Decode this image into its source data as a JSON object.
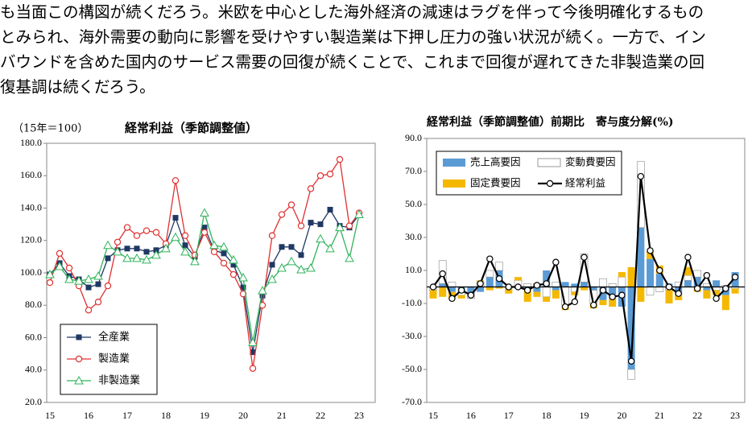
{
  "text_lines": [
    "も当面この構図が続くだろう。米欧を中心とした海外経済の減速はラグを伴って今後明確化するもの",
    "とみられ、海外需要の動向に影響を受けやすい製造業は下押し圧力の強い状況が続く。一方で、イン",
    "バウンドを含めた国内のサービス需要の回復が続くことで、これまで回復が遅れてきた非製造業の回",
    "復基調は続くだろう。"
  ],
  "chart_data": [
    {
      "type": "line",
      "title": "経常利益（季節調整値）",
      "unit_label": "（15年＝100）",
      "categories": [
        "15",
        null,
        null,
        null,
        "16",
        null,
        null,
        null,
        "17",
        null,
        null,
        null,
        "18",
        null,
        null,
        null,
        "19",
        null,
        null,
        null,
        "20",
        null,
        null,
        null,
        "21",
        null,
        null,
        null,
        "22",
        null,
        null,
        null,
        "23"
      ],
      "series": [
        {
          "name": "全産業",
          "color": "#1f3864",
          "marker": "square",
          "values": [
            99,
            106,
            98,
            96,
            91,
            93,
            109,
            114,
            115,
            115,
            113,
            114,
            117,
            134,
            117,
            110,
            128,
            114,
            112,
            105,
            91,
            51,
            86,
            105,
            116,
            116,
            111,
            131,
            130,
            139,
            129,
            128,
            136
          ]
        },
        {
          "name": "製造業",
          "color": "#e03030",
          "marker": "circle",
          "values": [
            94,
            112,
            103,
            92,
            77,
            82,
            92,
            119,
            128,
            123,
            126,
            125,
            118,
            157,
            123,
            111,
            125,
            113,
            106,
            99,
            87,
            41,
            80,
            123,
            136,
            142,
            129,
            152,
            160,
            161,
            170,
            129,
            137
          ]
        },
        {
          "name": "非製造業",
          "color": "#2fb35a",
          "marker": "triangle",
          "values": [
            99,
            104,
            96,
            95,
            96,
            98,
            117,
            113,
            109,
            109,
            108,
            111,
            115,
            122,
            113,
            107,
            137,
            117,
            116,
            108,
            97,
            57,
            89,
            96,
            103,
            107,
            102,
            103,
            121,
            115,
            128,
            109,
            136
          ]
        }
      ],
      "ylim": [
        20,
        180
      ],
      "yticks": [
        {
          "value": 20,
          "label": "20.0"
        },
        {
          "value": 40,
          "label": "40.0"
        },
        {
          "value": 60,
          "label": "60.0"
        },
        {
          "value": 80,
          "label": "80.0"
        },
        {
          "value": 100,
          "label": "100.0"
        },
        {
          "value": 120,
          "label": "120.0"
        },
        {
          "value": 140,
          "label": "140.0"
        },
        {
          "value": 160,
          "label": "160.0"
        },
        {
          "value": 180,
          "label": "180.0"
        }
      ],
      "grid": false,
      "legend": "lower left"
    },
    {
      "type": "combo",
      "title": "経常利益（季節調整値）前期比　寄与度分解(%)",
      "categories": [
        "15",
        null,
        null,
        null,
        "16",
        null,
        null,
        null,
        "17",
        null,
        null,
        null,
        "18",
        null,
        null,
        null,
        "19",
        null,
        null,
        null,
        "20",
        null,
        null,
        null,
        "21",
        null,
        null,
        null,
        "22",
        null,
        null,
        null,
        "23"
      ],
      "series": [
        {
          "name": "売上高要因",
          "color": "#5b9bd5",
          "kind": "bar",
          "values": [
            0,
            2,
            -3,
            -3,
            -4,
            -3,
            6,
            10,
            -1,
            -1,
            -1,
            -3,
            10,
            -2,
            3,
            2,
            3,
            -2,
            -8,
            -7,
            -12,
            -50,
            36,
            17,
            8,
            2,
            -5,
            4,
            6,
            -2,
            4,
            -5,
            9
          ]
        },
        {
          "name": "変動費要因",
          "color": "#ffffff",
          "kind": "bar",
          "values": [
            -2,
            14,
            3,
            -2,
            -3,
            3,
            4,
            5,
            0,
            4,
            2,
            2,
            -6,
            3,
            -11,
            -3,
            17,
            -8,
            5,
            2,
            6,
            -6,
            40,
            -5,
            -3,
            -2,
            3,
            3,
            4,
            2,
            -2,
            1,
            -1
          ]
        },
        {
          "name": "固定費要因",
          "color": "#f5b800",
          "kind": "bar",
          "values": [
            -5,
            -6,
            -4,
            -2,
            0,
            1,
            -2,
            -1,
            -3,
            2,
            -8,
            -3,
            -3,
            -5,
            -3,
            -2,
            -2,
            -3,
            -3,
            -5,
            3,
            12,
            -9,
            5,
            5,
            -8,
            -3,
            5,
            -3,
            -5,
            -3,
            -9,
            -3
          ]
        },
        {
          "name": "経常利益",
          "color": "#000000",
          "kind": "line",
          "values": [
            0,
            8,
            -7,
            -2,
            -5,
            2,
            17,
            5,
            0,
            0,
            -2,
            1,
            2,
            15,
            -12,
            -9,
            18,
            -11,
            -2,
            -6,
            -5,
            -45,
            67,
            22,
            10,
            0,
            -4,
            18,
            -1,
            7,
            -7,
            -1,
            6
          ]
        }
      ],
      "ylim": [
        -70,
        90
      ],
      "yticks": [
        {
          "value": -70,
          "label": "-70.0"
        },
        {
          "value": -50,
          "label": "-50.0"
        },
        {
          "value": -30,
          "label": "-30.0"
        },
        {
          "value": -10,
          "label": "-10.0"
        },
        {
          "value": 10,
          "label": "10.0"
        },
        {
          "value": 30,
          "label": "30.0"
        },
        {
          "value": 50,
          "label": "50.0"
        },
        {
          "value": 70,
          "label": "70.0"
        },
        {
          "value": 90,
          "label": "90.0"
        }
      ],
      "grid": false,
      "legend": "upper left"
    }
  ]
}
